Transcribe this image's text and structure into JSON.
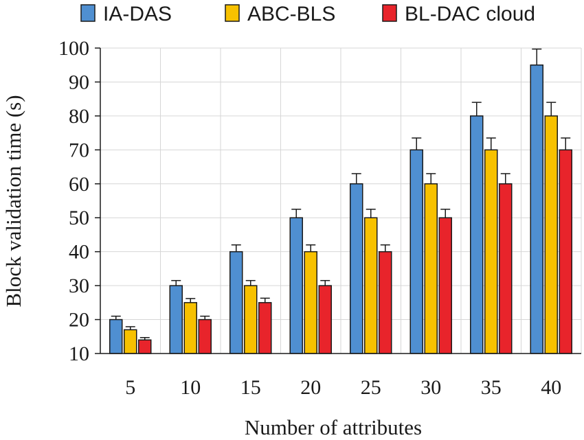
{
  "chart_data": {
    "type": "bar",
    "title": "",
    "xlabel": "Number of attributes",
    "ylabel": "Block validation time (s)",
    "ylim": [
      10,
      100
    ],
    "yticks": [
      10,
      20,
      30,
      40,
      50,
      60,
      70,
      80,
      90,
      100
    ],
    "grid": true,
    "legend": "top",
    "categories": [
      "5",
      "10",
      "15",
      "20",
      "25",
      "30",
      "35",
      "40"
    ],
    "series": [
      {
        "name": "IA-DAS",
        "color": "#4f8fd1",
        "values": [
          20,
          30,
          40,
          50,
          60,
          70,
          80,
          95
        ],
        "errors": [
          1,
          1.5,
          2,
          2.5,
          3,
          3.5,
          4,
          4.7
        ]
      },
      {
        "name": "ABC-BLS",
        "color": "#f7c100",
        "values": [
          17,
          25,
          30,
          40,
          50,
          60,
          70,
          80
        ],
        "errors": [
          0.9,
          1.2,
          1.5,
          2,
          2.5,
          3,
          3.5,
          4
        ]
      },
      {
        "name": "BL-DAC cloud",
        "color": "#e8242b",
        "values": [
          14,
          20,
          25,
          30,
          40,
          50,
          60,
          70
        ],
        "errors": [
          0.7,
          1,
          1.3,
          1.5,
          2,
          2.5,
          3,
          3.5
        ]
      }
    ]
  }
}
